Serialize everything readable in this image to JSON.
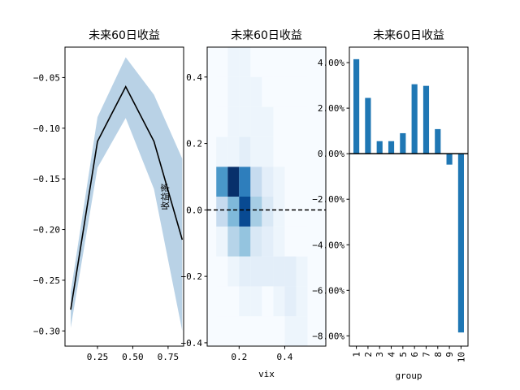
{
  "chart_data": [
    {
      "type": "line",
      "title": "未来60日收益",
      "xlabel": "",
      "ylabel": "",
      "xlim": [
        0.02,
        0.86
      ],
      "ylim": [
        -0.315,
        -0.02
      ],
      "xticks": [
        0.25,
        0.5,
        0.75
      ],
      "xtick_labels": [
        "0.25",
        "0.50",
        "0.75"
      ],
      "yticks": [
        -0.05,
        -0.1,
        -0.15,
        -0.2,
        -0.25,
        -0.3
      ],
      "ytick_labels": [
        "−0.05",
        "−0.10",
        "−0.15",
        "−0.20",
        "−0.25",
        "−0.30"
      ],
      "series": [
        {
          "x": [
            0.06,
            0.25,
            0.45,
            0.65,
            0.85
          ],
          "values": [
            -0.279,
            -0.113,
            -0.059,
            -0.113,
            -0.21
          ],
          "lower": [
            -0.297,
            -0.139,
            -0.09,
            -0.16,
            -0.3
          ],
          "upper": [
            -0.262,
            -0.089,
            -0.03,
            -0.067,
            -0.13
          ],
          "color": "#000000",
          "band_color": "#b9d2e6"
        }
      ]
    },
    {
      "type": "heatmap",
      "title": "未来60日收益",
      "xlabel": "vix",
      "ylabel": "收益率",
      "xlim": [
        0.06,
        0.58
      ],
      "ylim": [
        -0.41,
        0.49
      ],
      "xticks": [
        0.2,
        0.4
      ],
      "xtick_labels": [
        "0.2",
        "0.4"
      ],
      "yticks": [
        0.4,
        0.2,
        0.0,
        -0.2,
        -0.4
      ],
      "ytick_labels": [
        "0.4",
        "0.2",
        "0.0",
        "−0.2",
        "−0.4"
      ],
      "x_edges": [
        0.1,
        0.15,
        0.2,
        0.25,
        0.3,
        0.35,
        0.4,
        0.45,
        0.5
      ],
      "y_edges": [
        -0.41,
        -0.32,
        -0.23,
        -0.14,
        -0.05,
        0.04,
        0.13,
        0.22,
        0.31,
        0.4,
        0.49
      ],
      "counts": [
        [
          0,
          0,
          0,
          0,
          0,
          0,
          1,
          1
        ],
        [
          0,
          0,
          1,
          1,
          0,
          1,
          2,
          1
        ],
        [
          0,
          1,
          2,
          2,
          2,
          2,
          2,
          1
        ],
        [
          1,
          6,
          8,
          3,
          2,
          1,
          0,
          0
        ],
        [
          5,
          9,
          18,
          7,
          3,
          1,
          0,
          0
        ],
        [
          12,
          20,
          14,
          5,
          2,
          1,
          0,
          0
        ],
        [
          1,
          1,
          2,
          1,
          1,
          0,
          0,
          0
        ],
        [
          0,
          1,
          1,
          1,
          1,
          0,
          0,
          0
        ],
        [
          0,
          1,
          1,
          1,
          0,
          0,
          0,
          0
        ],
        [
          0,
          1,
          1,
          0,
          0,
          0,
          0,
          0
        ]
      ],
      "max_count": 20,
      "colormap": "Blues",
      "reference_line_y": 0.0
    },
    {
      "type": "bar",
      "title": "未来60日收益",
      "xlabel": "group",
      "ylabel": "",
      "categories": [
        "1",
        "2",
        "3",
        "4",
        "5",
        "6",
        "7",
        "8",
        "9",
        "10"
      ],
      "values": [
        0.0415,
        0.0245,
        0.0055,
        0.0055,
        0.009,
        0.0305,
        0.0298,
        0.0108,
        -0.0048,
        -0.0785
      ],
      "ylim": [
        -0.0845,
        0.0468
      ],
      "yticks": [
        0.04,
        0.02,
        0.0,
        -0.02,
        -0.04,
        -0.06,
        -0.08
      ],
      "ytick_labels": [
        "4.00%",
        "2.00%",
        "0.00%",
        "−2.00%",
        "−4.00%",
        "−6.00%",
        "−8.00%"
      ],
      "color": "#1f77b4"
    }
  ]
}
